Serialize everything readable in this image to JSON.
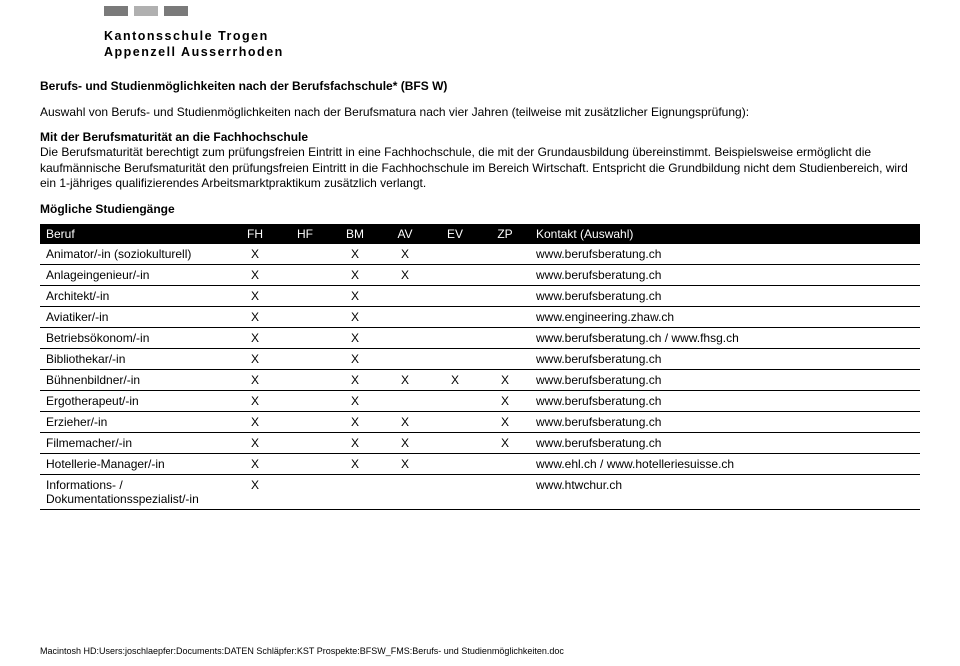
{
  "header_bar_colors": [
    "#7a7a7a",
    "#b0b0b0",
    "#7a7a7a"
  ],
  "school_line1": "Kantonsschule Trogen",
  "school_line2": "Appenzell Ausserrhoden",
  "title": "Berufs- und Studienmöglichkeiten nach der Berufsfachschule* (BFS W)",
  "intro": "Auswahl von Berufs- und Studienmöglichkeiten nach der Berufsmatura nach vier Jahren (teilweise mit zusätzlicher Eignungsprüfung):",
  "section_head": "Mit der Berufsmaturität an die Fachhochschule",
  "body_text": "Die Berufsmaturität berechtigt zum prüfungsfreien Eintritt in eine Fachhochschule, die mit der Grundausbildung übereinstimmt. Beispielsweise ermöglicht die kaufmännische Berufsmaturität den prüfungsfreien Eintritt in die Fachhochschule im Bereich Wirtschaft. Entspricht die Grundbildung nicht dem Studienbereich, wird ein 1-jähriges qualifizierendes Arbeitsmarktpraktikum zusätzlich verlangt.",
  "subhead": "Mögliche Studiengänge",
  "columns": [
    "Beruf",
    "FH",
    "HF",
    "BM",
    "AV",
    "EV",
    "ZP",
    "Kontakt (Auswahl)"
  ],
  "rows": [
    {
      "beruf": "Animator/-in (soziokulturell)",
      "fh": "X",
      "hf": "",
      "bm": "X",
      "av": "X",
      "ev": "",
      "zp": "",
      "kontakt": "www.berufsberatung.ch"
    },
    {
      "beruf": "Anlageingenieur/-in",
      "fh": "X",
      "hf": "",
      "bm": "X",
      "av": "X",
      "ev": "",
      "zp": "",
      "kontakt": "www.berufsberatung.ch"
    },
    {
      "beruf": "Architekt/-in",
      "fh": "X",
      "hf": "",
      "bm": "X",
      "av": "",
      "ev": "",
      "zp": "",
      "kontakt": "www.berufsberatung.ch"
    },
    {
      "beruf": "Aviatiker/-in",
      "fh": "X",
      "hf": "",
      "bm": "X",
      "av": "",
      "ev": "",
      "zp": "",
      "kontakt": "www.engineering.zhaw.ch"
    },
    {
      "beruf": "Betriebsökonom/-in",
      "fh": "X",
      "hf": "",
      "bm": "X",
      "av": "",
      "ev": "",
      "zp": "",
      "kontakt": "www.berufsberatung.ch / www.fhsg.ch"
    },
    {
      "beruf": "Bibliothekar/-in",
      "fh": "X",
      "hf": "",
      "bm": "X",
      "av": "",
      "ev": "",
      "zp": "",
      "kontakt": "www.berufsberatung.ch"
    },
    {
      "beruf": "Bühnenbildner/-in",
      "fh": "X",
      "hf": "",
      "bm": "X",
      "av": "X",
      "ev": "X",
      "zp": "X",
      "kontakt": "www.berufsberatung.ch"
    },
    {
      "beruf": "Ergotherapeut/-in",
      "fh": "X",
      "hf": "",
      "bm": "X",
      "av": "",
      "ev": "",
      "zp": "X",
      "kontakt": "www.berufsberatung.ch"
    },
    {
      "beruf": "Erzieher/-in",
      "fh": "X",
      "hf": "",
      "bm": "X",
      "av": "X",
      "ev": "",
      "zp": "X",
      "kontakt": "www.berufsberatung.ch"
    },
    {
      "beruf": "Filmemacher/-in",
      "fh": "X",
      "hf": "",
      "bm": "X",
      "av": "X",
      "ev": "",
      "zp": "X",
      "kontakt": "www.berufsberatung.ch"
    },
    {
      "beruf": "Hotellerie-Manager/-in",
      "fh": "X",
      "hf": "",
      "bm": "X",
      "av": "X",
      "ev": "",
      "zp": "",
      "kontakt": "www.ehl.ch / www.hotelleriesuisse.ch"
    },
    {
      "beruf": "Informations- / Dokumentationsspezialist/-in",
      "fh": "X",
      "hf": "",
      "bm": "",
      "av": "",
      "ev": "",
      "zp": "",
      "kontakt": "www.htwchur.ch"
    }
  ],
  "footer": "Macintosh HD:Users:joschlaepfer:Documents:DATEN Schläpfer:KST Prospekte:BFSW_FMS:Berufs- und Studienmöglichkeiten.doc"
}
